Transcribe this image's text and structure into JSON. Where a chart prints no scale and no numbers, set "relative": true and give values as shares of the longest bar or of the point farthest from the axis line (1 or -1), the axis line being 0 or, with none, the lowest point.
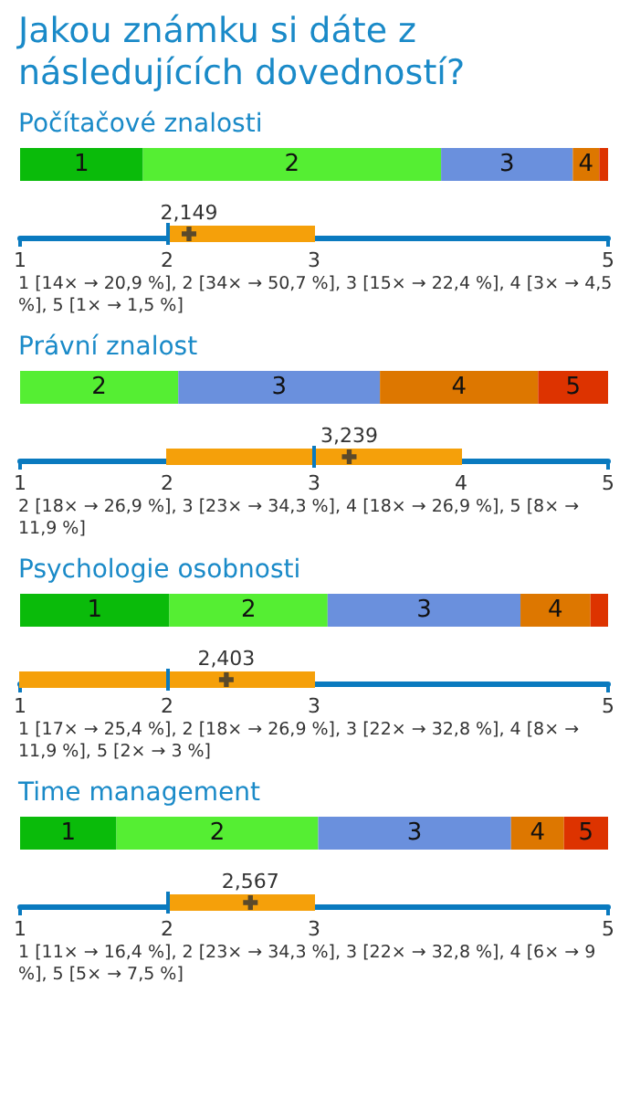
{
  "chart_data": [
    {
      "type": "bar",
      "orientation": "horizontal",
      "stacked": true,
      "relative": true,
      "title": "Jakou známku si dáte z následujících dovedností?",
      "subtitle": "Počítačové znalosti",
      "categories": [
        null
      ],
      "series": [
        {
          "name": "1",
          "color": "#0abb0a",
          "values": [
            0.209
          ]
        },
        {
          "name": "2",
          "color": "#55ee33",
          "values": [
            0.507
          ]
        },
        {
          "name": "3",
          "color": "#6a90dd",
          "values": [
            0.224
          ]
        },
        {
          "name": "4",
          "color": "#dd7700",
          "values": [
            0.045
          ]
        },
        {
          "color": "#dd3300",
          "values": [
            0.015
          ]
        }
      ]
    },
    {
      "type": "box",
      "orientation": "horizontal",
      "categories": [
        null
      ],
      "color": "#f5a00a",
      "marker": "cross",
      "boxes": [
        {
          "low": 2,
          "q1": 2,
          "median": 2,
          "q3": 3,
          "high": 3,
          "mean": 2.149
        }
      ],
      "xlim": [
        1,
        5
      ],
      "xticks": [
        1,
        2,
        3,
        5
      ],
      "annotations": [
        "2,149",
        "1 [14× → 20,9 %], 2 [34× → 50,7 %], 3 [15× → 22,4 %], 4 [3× → 4,5 %], 5 [1× → 1,5 %]"
      ]
    },
    {
      "type": "bar",
      "orientation": "horizontal",
      "stacked": true,
      "relative": true,
      "subtitle": "Právní znalost",
      "categories": [
        null
      ],
      "series": [
        {
          "name": "2",
          "color": "#55ee33",
          "values": [
            0.269
          ]
        },
        {
          "name": "3",
          "color": "#6a90dd",
          "values": [
            0.343
          ]
        },
        {
          "name": "4",
          "color": "#dd7700",
          "values": [
            0.269
          ]
        },
        {
          "name": "5",
          "color": "#dd3300",
          "values": [
            0.119
          ]
        }
      ]
    },
    {
      "type": "box",
      "orientation": "horizontal",
      "categories": [
        null
      ],
      "color": "#f5a00a",
      "marker": "cross",
      "boxes": [
        {
          "low": 2,
          "q1": 2,
          "median": 3,
          "q3": 4,
          "high": 4,
          "mean": 3.239
        }
      ],
      "xlim": [
        1,
        5
      ],
      "xticks": [
        1,
        2,
        3,
        4,
        5
      ],
      "annotations": [
        "3,239",
        "2 [18× → 26,9 %], 3 [23× → 34,3 %], 4 [18× → 26,9 %], 5 [8× → 11,9 %]"
      ]
    },
    {
      "type": "bar",
      "orientation": "horizontal",
      "stacked": true,
      "relative": true,
      "subtitle": "Psychologie osobnosti",
      "categories": [
        null
      ],
      "series": [
        {
          "name": "1",
          "color": "#0abb0a",
          "values": [
            0.254
          ]
        },
        {
          "name": "2",
          "color": "#55ee33",
          "values": [
            0.269
          ]
        },
        {
          "name": "3",
          "color": "#6a90dd",
          "values": [
            0.328
          ]
        },
        {
          "name": "4",
          "color": "#dd7700",
          "values": [
            0.119
          ]
        },
        {
          "color": "#dd3300",
          "values": [
            0.03
          ]
        }
      ]
    },
    {
      "type": "box",
      "orientation": "horizontal",
      "categories": [
        null
      ],
      "color": "#f5a00a",
      "marker": "cross",
      "boxes": [
        {
          "low": 1,
          "q1": 1,
          "median": 2,
          "q3": 3,
          "high": 3,
          "mean": 2.403
        }
      ],
      "xlim": [
        1,
        5
      ],
      "xticks": [
        1,
        2,
        3,
        5
      ],
      "annotations": [
        "2,403",
        "1 [17× → 25,4 %], 2 [18× → 26,9 %], 3 [22× → 32,8 %], 4 [8× → 11,9 %], 5 [2× → 3 %]"
      ]
    },
    {
      "type": "bar",
      "orientation": "horizontal",
      "stacked": true,
      "relative": true,
      "subtitle": "Time management",
      "categories": [
        null
      ],
      "series": [
        {
          "name": "1",
          "color": "#0abb0a",
          "values": [
            0.164
          ]
        },
        {
          "name": "2",
          "color": "#55ee33",
          "values": [
            0.343
          ]
        },
        {
          "name": "3",
          "color": "#6a90dd",
          "values": [
            0.328
          ]
        },
        {
          "name": "4",
          "color": "#dd7700",
          "values": [
            0.09
          ]
        },
        {
          "name": "5",
          "color": "#dd3300",
          "values": [
            0.075
          ]
        }
      ]
    },
    {
      "type": "box",
      "orientation": "horizontal",
      "categories": [
        null
      ],
      "color": "#f5a00a",
      "marker": "cross",
      "boxes": [
        {
          "low": 2,
          "q1": 2,
          "median": 2,
          "q3": 3,
          "high": 3,
          "mean": 2.567
        }
      ],
      "xlim": [
        1,
        5
      ],
      "xticks": [
        1,
        2,
        3,
        5
      ],
      "annotations": [
        "2,567",
        "1 [11× → 16,4 %], 2 [23× → 34,3 %], 3 [22× → 32,8 %], 4 [6× → 9 %], 5 [5× → 7,5 %]"
      ]
    }
  ]
}
